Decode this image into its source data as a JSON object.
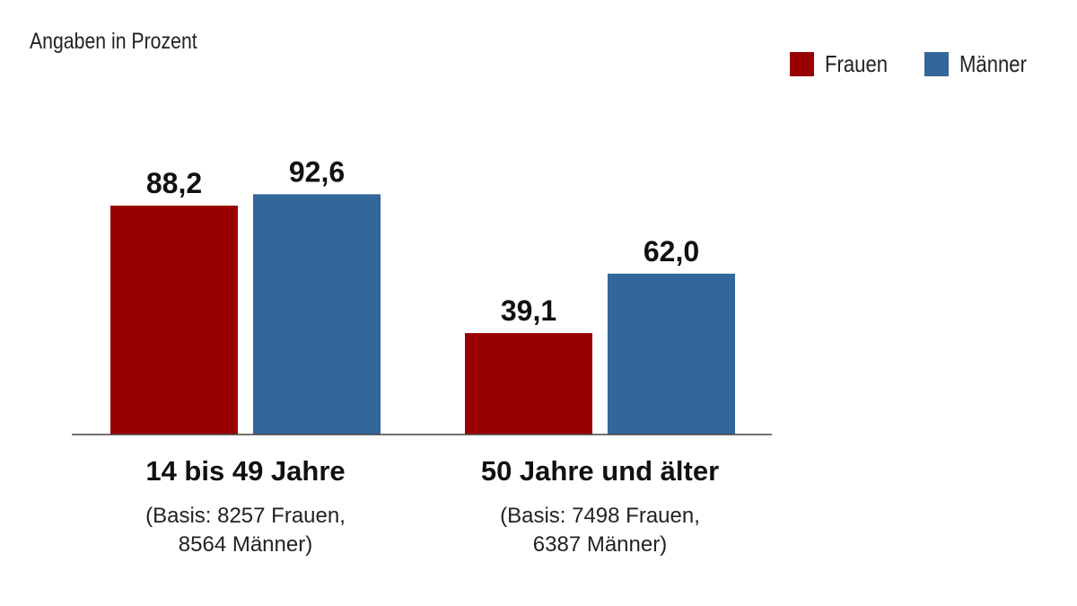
{
  "chart_data": {
    "type": "bar",
    "title": "",
    "subtitle": "Angaben in Prozent",
    "categories": [
      "14 bis 49 Jahre",
      "50 Jahre und älter"
    ],
    "category_notes": [
      [
        "(Basis: 8257 Frauen,",
        "8564 Männer)"
      ],
      [
        "(Basis: 7498 Frauen,",
        "6387 Männer)"
      ]
    ],
    "series": [
      {
        "name": "Frauen",
        "color": "#990000",
        "values": [
          88.2,
          39.1
        ],
        "labels": [
          "88,2",
          "39,1"
        ]
      },
      {
        "name": "Männer",
        "color": "#336699",
        "values": [
          92.6,
          62.0
        ],
        "labels": [
          "92,6",
          "62,0"
        ]
      }
    ],
    "ylim": [
      0,
      100
    ],
    "grid": false,
    "legend": "top-right"
  }
}
